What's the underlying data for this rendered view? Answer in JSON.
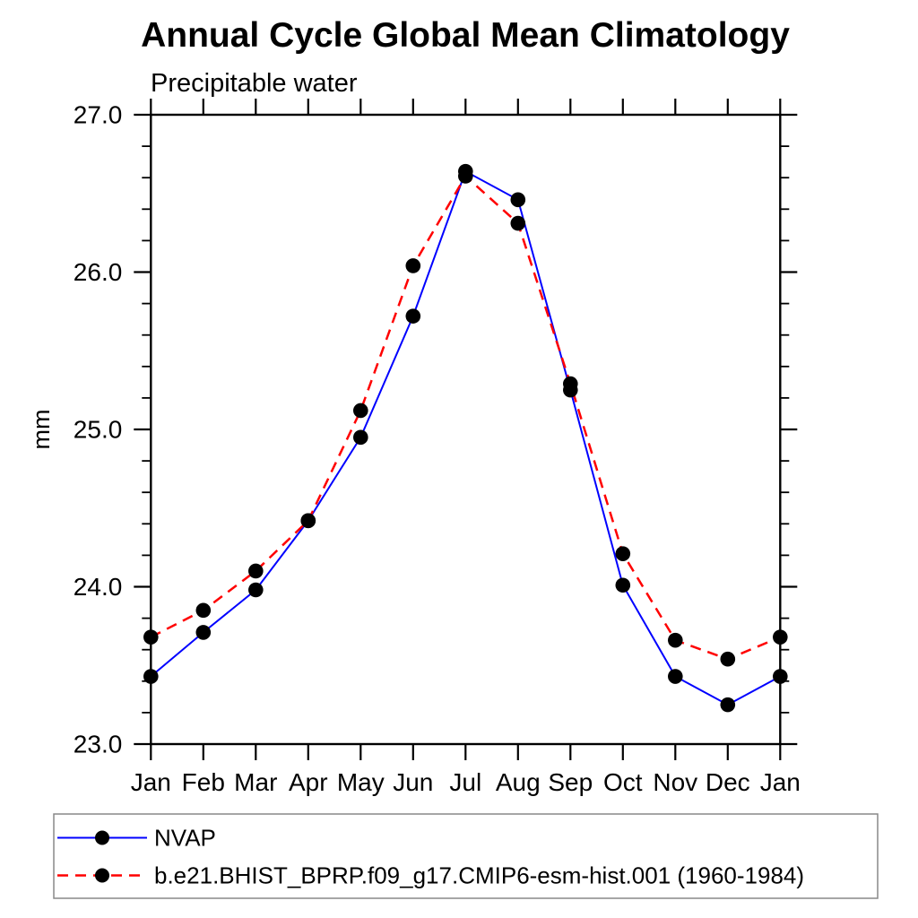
{
  "colors": {
    "background": "#ffffff",
    "text": "#000000",
    "axis": "#000000",
    "marker": "#000000",
    "nvap_line": "#0000ff",
    "model_line": "#ff0000",
    "legend_border": "#888888"
  },
  "chart_data": {
    "type": "line",
    "title": "Annual Cycle Global Mean Climatology",
    "subtitle": "Precipitable water",
    "xlabel": "",
    "ylabel": "mm",
    "x_tick_labels": [
      "Jan",
      "Feb",
      "Mar",
      "Apr",
      "May",
      "Jun",
      "Jul",
      "Aug",
      "Sep",
      "Oct",
      "Nov",
      "Dec",
      "Jan"
    ],
    "y_ticks": [
      23.0,
      24.0,
      25.0,
      26.0,
      27.0
    ],
    "y_tick_labels": [
      "23.0",
      "24.0",
      "25.0",
      "26.0",
      "27.0"
    ],
    "y_minor_step": 0.2,
    "ylim": [
      23.0,
      27.0
    ],
    "grid": false,
    "legend_position": "bottom-left",
    "series": [
      {
        "name": "NVAP",
        "color": "#0000ff",
        "style": "solid",
        "marker": "circle",
        "values": [
          23.43,
          23.71,
          23.98,
          24.42,
          24.95,
          25.72,
          26.64,
          26.46,
          25.25,
          24.01,
          23.43,
          23.25,
          23.43
        ]
      },
      {
        "name": "b.e21.BHIST_BPRP.f09_g17.CMIP6-esm-hist.001 (1960-1984)",
        "color": "#ff0000",
        "style": "dashed",
        "marker": "circle",
        "values": [
          23.68,
          23.85,
          24.1,
          24.42,
          25.12,
          26.04,
          26.61,
          26.31,
          25.29,
          24.21,
          23.66,
          23.54,
          23.68
        ]
      }
    ]
  }
}
